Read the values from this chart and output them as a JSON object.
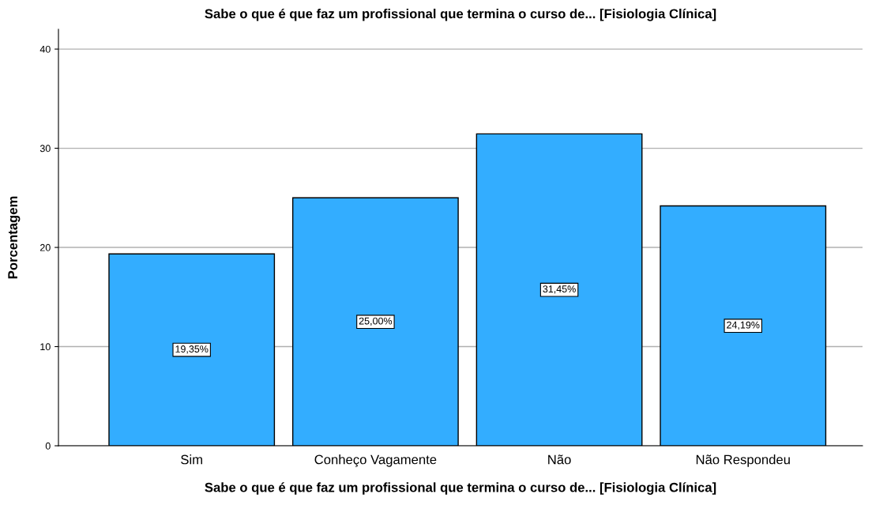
{
  "chart_data": {
    "type": "bar",
    "title": "Sabe o que é que faz um profissional que termina o curso de... [Fisiologia Clínica]",
    "xlabel": "Sabe o que é que faz um profissional que termina o curso de... [Fisiologia Clínica]",
    "ylabel": "Porcentagem",
    "categories": [
      "Sim",
      "Conheço Vagamente",
      "Não",
      "Não Respondeu"
    ],
    "values": [
      19.35,
      25.0,
      31.45,
      24.19
    ],
    "value_labels": [
      "19,35%",
      "25,00%",
      "31,45%",
      "24,19%"
    ],
    "color": "#33adff",
    "ylim": [
      0,
      42
    ],
    "yticks": [
      0,
      10,
      20,
      30,
      40
    ],
    "grid": "y",
    "legend": false
  }
}
